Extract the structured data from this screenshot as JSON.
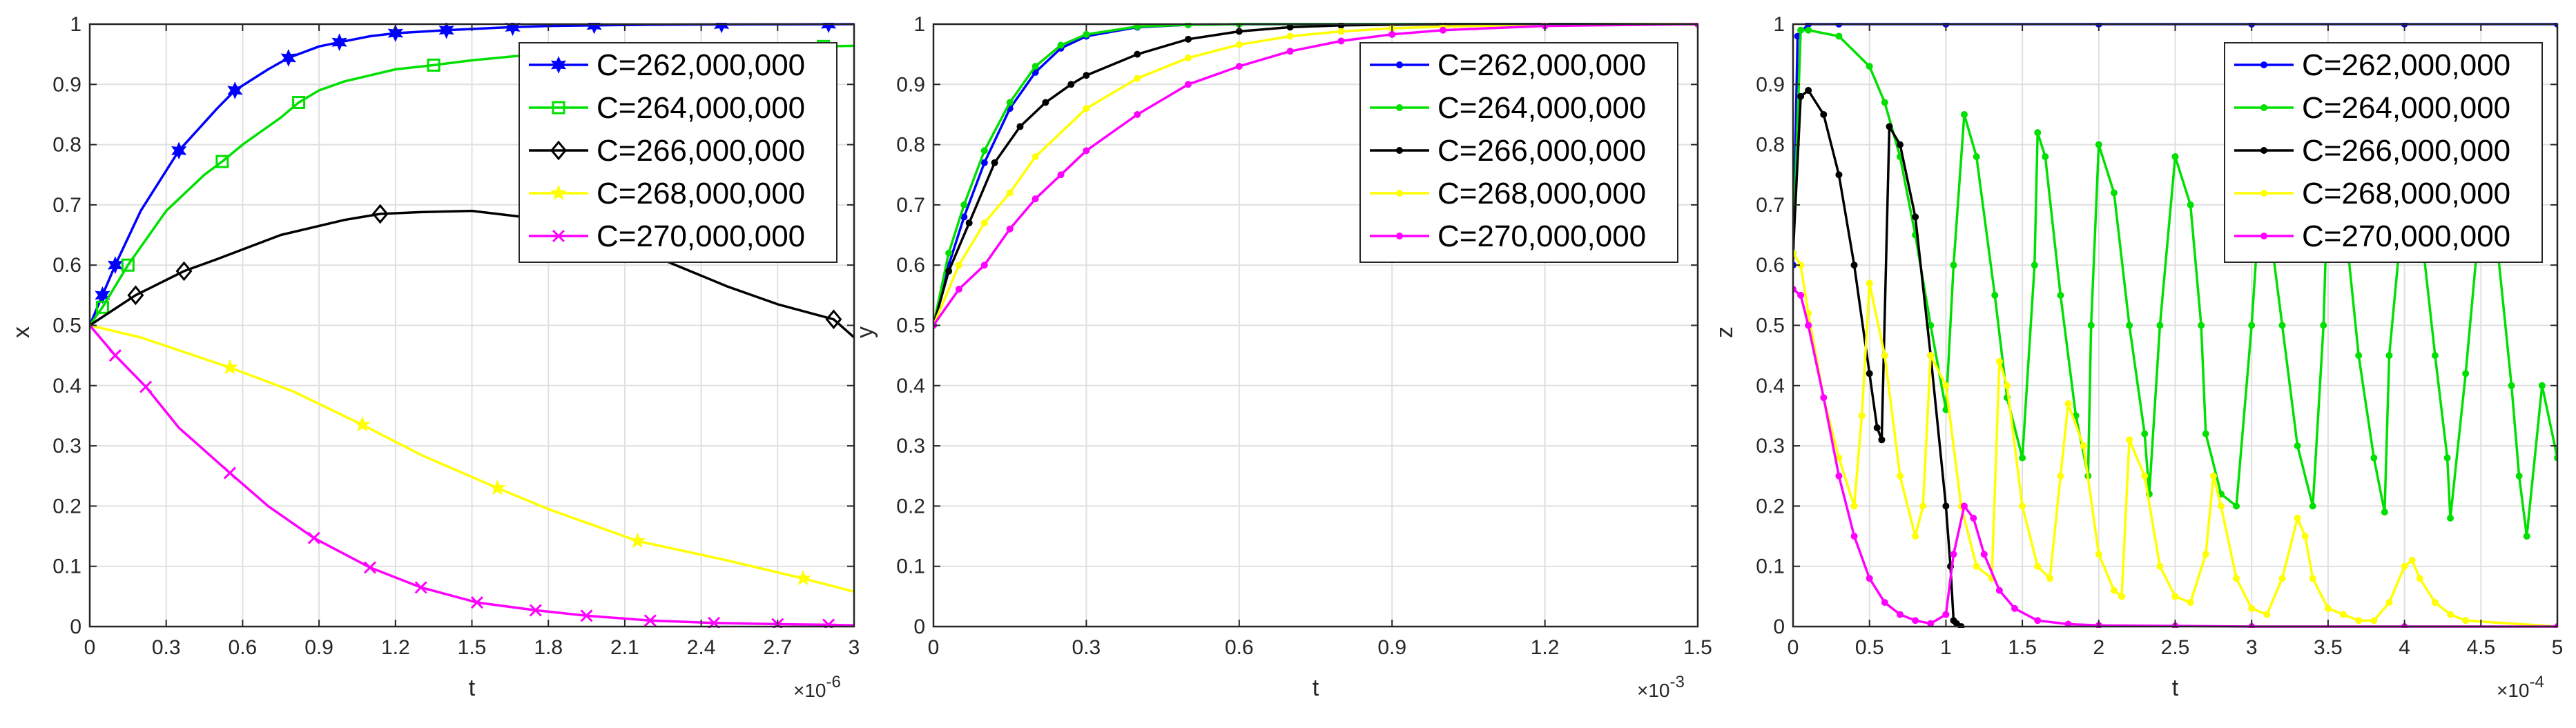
{
  "series_names": [
    "C=262,000,000",
    "C=264,000,000",
    "C=266,000,000",
    "C=268,000,000",
    "C=270,000,000"
  ],
  "colors": {
    "C262": "#0000ff",
    "C264": "#00e000",
    "C266": "#000000",
    "C268": "#ffff00",
    "C270": "#ff00ff",
    "grid": "#e0e0e0",
    "axes": "#262626"
  },
  "chart_data": [
    {
      "type": "line",
      "title": "",
      "xlabel": "t",
      "ylabel": "x",
      "x_multiplier": "×10",
      "x_exponent": "-6",
      "xlim": [
        0,
        3
      ],
      "ylim": [
        0,
        1
      ],
      "xticks": [
        0,
        0.3,
        0.6,
        0.9,
        1.2,
        1.5,
        1.8,
        2.1,
        2.4,
        2.7,
        3
      ],
      "xtick_labels": [
        "0",
        "0.3",
        "0.6",
        "0.9",
        "1.2",
        "1.5",
        "1.8",
        "2.1",
        "2.4",
        "2.7",
        "3"
      ],
      "yticks": [
        0,
        0.1,
        0.2,
        0.3,
        0.4,
        0.5,
        0.6,
        0.7,
        0.8,
        0.9,
        1
      ],
      "ytick_labels": [
        "0",
        "0.1",
        "0.2",
        "0.3",
        "0.4",
        "0.5",
        "0.6",
        "0.7",
        "0.8",
        "0.9",
        "1"
      ],
      "grid": true,
      "legend_position": "top-right",
      "series": [
        {
          "name": "C=262,000,000",
          "marker": "hexagram",
          "x": [
            0,
            0.05,
            0.1,
            0.2,
            0.35,
            0.5,
            0.57,
            0.7,
            0.78,
            0.9,
            0.98,
            1.1,
            1.2,
            1.4,
            1.6,
            1.66,
            1.8,
            1.98,
            2.2,
            2.48,
            2.7,
            2.9,
            3.0
          ],
          "y": [
            0.5,
            0.55,
            0.6,
            0.69,
            0.79,
            0.86,
            0.89,
            0.925,
            0.944,
            0.963,
            0.97,
            0.98,
            0.985,
            0.99,
            0.994,
            0.995,
            0.997,
            0.998,
            0.999,
            0.9995,
            0.9997,
            0.9999,
            1.0
          ],
          "markers_x": [
            0.05,
            0.1,
            0.35,
            0.57,
            0.78,
            0.98,
            1.2,
            1.4,
            1.66,
            1.98,
            2.48,
            2.9
          ]
        },
        {
          "name": "C=264,000,000",
          "marker": "square",
          "x": [
            0,
            0.05,
            0.15,
            0.3,
            0.45,
            0.52,
            0.6,
            0.75,
            0.82,
            0.9,
            1.0,
            1.2,
            1.35,
            1.5,
            1.7,
            2.0,
            2.3,
            2.6,
            2.88,
            3.0
          ],
          "y": [
            0.5,
            0.53,
            0.6,
            0.69,
            0.75,
            0.772,
            0.8,
            0.845,
            0.87,
            0.89,
            0.905,
            0.925,
            0.932,
            0.94,
            0.948,
            0.955,
            0.96,
            0.962,
            0.963,
            0.964
          ],
          "markers_x": [
            0.05,
            0.15,
            0.52,
            0.82,
            1.35,
            2.88
          ]
        },
        {
          "name": "C=266,000,000",
          "marker": "diamond",
          "x": [
            0,
            0.18,
            0.37,
            0.5,
            0.75,
            1.0,
            1.14,
            1.3,
            1.5,
            1.7,
            1.9,
            2.1,
            2.3,
            2.5,
            2.7,
            2.92,
            3.0
          ],
          "y": [
            0.5,
            0.55,
            0.59,
            0.61,
            0.65,
            0.675,
            0.685,
            0.688,
            0.69,
            0.68,
            0.665,
            0.635,
            0.6,
            0.565,
            0.535,
            0.51,
            0.48
          ],
          "markers_x": [
            0.18,
            0.37,
            1.14,
            2.92
          ]
        },
        {
          "name": "C=268,000,000",
          "marker": "star",
          "x": [
            0,
            0.2,
            0.55,
            0.8,
            1.07,
            1.3,
            1.6,
            1.8,
            2.15,
            2.5,
            2.8,
            3.0
          ],
          "y": [
            0.5,
            0.48,
            0.43,
            0.39,
            0.335,
            0.285,
            0.23,
            0.195,
            0.142,
            0.11,
            0.08,
            0.058
          ],
          "markers_x": [
            0.55,
            1.07,
            1.6,
            2.15,
            2.8
          ]
        },
        {
          "name": "C=270,000,000",
          "marker": "x",
          "x": [
            0,
            0.1,
            0.22,
            0.35,
            0.55,
            0.7,
            0.88,
            1.1,
            1.3,
            1.52,
            1.75,
            1.95,
            2.2,
            2.45,
            2.7,
            2.9,
            3.0
          ],
          "y": [
            0.5,
            0.45,
            0.398,
            0.33,
            0.255,
            0.2,
            0.147,
            0.098,
            0.065,
            0.04,
            0.027,
            0.018,
            0.01,
            0.006,
            0.004,
            0.003,
            0.002
          ],
          "markers_x": [
            0.1,
            0.22,
            0.55,
            0.88,
            1.1,
            1.3,
            1.52,
            1.75,
            1.95,
            2.2,
            2.45,
            2.7,
            2.9
          ]
        }
      ]
    },
    {
      "type": "line",
      "title": "",
      "xlabel": "t",
      "ylabel": "y",
      "x_multiplier": "×10",
      "x_exponent": "-3",
      "xlim": [
        0,
        1.5
      ],
      "ylim": [
        0,
        1
      ],
      "xticks": [
        0,
        0.3,
        0.6,
        0.9,
        1.2,
        1.5
      ],
      "xtick_labels": [
        "0",
        "0.3",
        "0.6",
        "0.9",
        "1.2",
        "1.5"
      ],
      "yticks": [
        0,
        0.1,
        0.2,
        0.3,
        0.4,
        0.5,
        0.6,
        0.7,
        0.8,
        0.9,
        1
      ],
      "ytick_labels": [
        "0",
        "0.1",
        "0.2",
        "0.3",
        "0.4",
        "0.5",
        "0.6",
        "0.7",
        "0.8",
        "0.9",
        "1"
      ],
      "grid": true,
      "legend_position": "top-right",
      "series": [
        {
          "name": "C=262,000,000",
          "marker": "dot",
          "x": [
            0,
            0.03,
            0.06,
            0.1,
            0.15,
            0.2,
            0.25,
            0.3,
            0.4,
            0.5,
            0.6,
            0.8,
            1.0,
            1.2,
            1.5
          ],
          "y": [
            0.5,
            0.6,
            0.68,
            0.77,
            0.86,
            0.92,
            0.96,
            0.98,
            0.995,
            0.999,
            1.0,
            1.0,
            1.0,
            1.0,
            1.0
          ]
        },
        {
          "name": "C=264,000,000",
          "marker": "dot",
          "x": [
            0,
            0.03,
            0.06,
            0.1,
            0.15,
            0.2,
            0.25,
            0.3,
            0.4,
            0.5,
            0.6,
            0.8,
            1.0,
            1.2,
            1.5
          ],
          "y": [
            0.5,
            0.62,
            0.7,
            0.79,
            0.87,
            0.93,
            0.965,
            0.983,
            0.996,
            0.999,
            1.0,
            1.0,
            1.0,
            1.0,
            1.0
          ]
        },
        {
          "name": "C=266,000,000",
          "marker": "dot",
          "x": [
            0,
            0.03,
            0.07,
            0.12,
            0.17,
            0.22,
            0.27,
            0.3,
            0.4,
            0.5,
            0.6,
            0.7,
            0.8,
            1.0,
            1.2,
            1.5
          ],
          "y": [
            0.5,
            0.59,
            0.67,
            0.77,
            0.83,
            0.87,
            0.9,
            0.915,
            0.95,
            0.975,
            0.988,
            0.995,
            0.998,
            1.0,
            1.0,
            1.0
          ]
        },
        {
          "name": "C=268,000,000",
          "marker": "dot",
          "x": [
            0,
            0.05,
            0.1,
            0.15,
            0.2,
            0.3,
            0.4,
            0.5,
            0.6,
            0.7,
            0.8,
            0.9,
            1.0,
            1.2,
            1.5
          ],
          "y": [
            0.5,
            0.6,
            0.67,
            0.72,
            0.78,
            0.86,
            0.91,
            0.944,
            0.966,
            0.98,
            0.988,
            0.993,
            0.996,
            0.999,
            1.0
          ]
        },
        {
          "name": "C=270,000,000",
          "marker": "dot",
          "x": [
            0,
            0.05,
            0.1,
            0.15,
            0.2,
            0.25,
            0.3,
            0.4,
            0.5,
            0.6,
            0.7,
            0.8,
            0.9,
            1.0,
            1.2,
            1.5
          ],
          "y": [
            0.5,
            0.56,
            0.6,
            0.66,
            0.71,
            0.75,
            0.79,
            0.85,
            0.9,
            0.93,
            0.955,
            0.972,
            0.983,
            0.99,
            0.997,
            1.0
          ]
        }
      ]
    },
    {
      "type": "line",
      "title": "",
      "xlabel": "t",
      "ylabel": "z",
      "x_multiplier": "×10",
      "x_exponent": "-4",
      "xlim": [
        0,
        5
      ],
      "ylim": [
        0,
        1
      ],
      "xticks": [
        0,
        0.5,
        1,
        1.5,
        2,
        2.5,
        3,
        3.5,
        4,
        4.5,
        5
      ],
      "xtick_labels": [
        "0",
        "0.5",
        "1",
        "1.5",
        "2",
        "2.5",
        "3",
        "3.5",
        "4",
        "4.5",
        "5"
      ],
      "yticks": [
        0,
        0.1,
        0.2,
        0.3,
        0.4,
        0.5,
        0.6,
        0.7,
        0.8,
        0.9,
        1
      ],
      "ytick_labels": [
        "0",
        "0.1",
        "0.2",
        "0.3",
        "0.4",
        "0.5",
        "0.6",
        "0.7",
        "0.8",
        "0.9",
        "1"
      ],
      "grid": true,
      "legend_position": "top-right",
      "series": [
        {
          "name": "C=262,000,000",
          "marker": "dot",
          "x": [
            0,
            0.03,
            0.1,
            0.3,
            1,
            2,
            3,
            4,
            5
          ],
          "y": [
            0.6,
            0.98,
            1.0,
            1.0,
            1.0,
            1.0,
            1.0,
            1.0,
            1.0
          ]
        },
        {
          "name": "C=264,000,000",
          "marker": "dot",
          "x": [
            0,
            0.05,
            0.1,
            0.3,
            0.5,
            0.6,
            0.7,
            0.8,
            0.9,
            1.0,
            1.05,
            1.12,
            1.2,
            1.32,
            1.4,
            1.5,
            1.58,
            1.6,
            1.65,
            1.75,
            1.85,
            1.93,
            1.95,
            2.0,
            2.1,
            2.2,
            2.3,
            2.33,
            2.4,
            2.5,
            2.6,
            2.67,
            2.7,
            2.8,
            2.9,
            3.0,
            3.07,
            3.1,
            3.2,
            3.3,
            3.4,
            3.47,
            3.5,
            3.6,
            3.7,
            3.8,
            3.87,
            3.9,
            4.0,
            4.1,
            4.2,
            4.28,
            4.3,
            4.4,
            4.5,
            4.6,
            4.7,
            4.75,
            4.8,
            4.9,
            5.0
          ],
          "y": [
            0.62,
            0.99,
            0.99,
            0.98,
            0.93,
            0.87,
            0.78,
            0.65,
            0.5,
            0.36,
            0.6,
            0.85,
            0.78,
            0.55,
            0.38,
            0.28,
            0.6,
            0.82,
            0.78,
            0.55,
            0.35,
            0.25,
            0.5,
            0.8,
            0.72,
            0.5,
            0.32,
            0.22,
            0.5,
            0.78,
            0.7,
            0.5,
            0.32,
            0.22,
            0.2,
            0.5,
            0.77,
            0.7,
            0.5,
            0.3,
            0.2,
            0.5,
            0.75,
            0.7,
            0.45,
            0.28,
            0.19,
            0.45,
            0.72,
            0.68,
            0.45,
            0.28,
            0.18,
            0.42,
            0.7,
            0.65,
            0.4,
            0.25,
            0.15,
            0.4,
            0.28
          ]
        },
        {
          "name": "C=266,000,000",
          "marker": "dot",
          "x": [
            0,
            0.05,
            0.1,
            0.2,
            0.3,
            0.4,
            0.5,
            0.55,
            0.58,
            0.63,
            0.7,
            0.8,
            0.9,
            1.0,
            1.03,
            1.05,
            1.07,
            1.1
          ],
          "y": [
            0.62,
            0.88,
            0.89,
            0.85,
            0.75,
            0.6,
            0.42,
            0.33,
            0.31,
            0.83,
            0.8,
            0.68,
            0.45,
            0.2,
            0.1,
            0.01,
            0.005,
            0.0
          ]
        },
        {
          "name": "C=268,000,000",
          "marker": "dot",
          "x": [
            0,
            0.05,
            0.1,
            0.2,
            0.3,
            0.4,
            0.45,
            0.5,
            0.6,
            0.7,
            0.8,
            0.85,
            0.9,
            1.0,
            1.1,
            1.2,
            1.3,
            1.35,
            1.4,
            1.5,
            1.6,
            1.68,
            1.75,
            1.8,
            1.9,
            2.0,
            2.1,
            2.15,
            2.2,
            2.3,
            2.4,
            2.5,
            2.6,
            2.7,
            2.75,
            2.8,
            2.9,
            3.0,
            3.1,
            3.2,
            3.3,
            3.35,
            3.4,
            3.5,
            3.6,
            3.7,
            3.8,
            3.9,
            4.0,
            4.05,
            4.1,
            4.2,
            4.3,
            4.4,
            5.0
          ],
          "y": [
            0.62,
            0.6,
            0.52,
            0.38,
            0.28,
            0.2,
            0.35,
            0.57,
            0.45,
            0.25,
            0.15,
            0.2,
            0.45,
            0.4,
            0.2,
            0.1,
            0.08,
            0.44,
            0.4,
            0.2,
            0.1,
            0.08,
            0.25,
            0.37,
            0.3,
            0.12,
            0.06,
            0.05,
            0.31,
            0.25,
            0.1,
            0.05,
            0.04,
            0.12,
            0.25,
            0.2,
            0.08,
            0.03,
            0.02,
            0.08,
            0.18,
            0.15,
            0.08,
            0.03,
            0.02,
            0.01,
            0.01,
            0.04,
            0.1,
            0.11,
            0.08,
            0.04,
            0.02,
            0.01,
            0.0
          ]
        },
        {
          "name": "C=270,000,000",
          "marker": "dot",
          "x": [
            0,
            0.05,
            0.1,
            0.2,
            0.3,
            0.4,
            0.5,
            0.6,
            0.7,
            0.8,
            0.9,
            1.0,
            1.05,
            1.12,
            1.18,
            1.25,
            1.35,
            1.45,
            1.6,
            1.8,
            2.0,
            2.5,
            3.0,
            4.0,
            5.0
          ],
          "y": [
            0.56,
            0.55,
            0.5,
            0.38,
            0.25,
            0.15,
            0.08,
            0.04,
            0.02,
            0.01,
            0.005,
            0.02,
            0.12,
            0.2,
            0.18,
            0.12,
            0.06,
            0.03,
            0.01,
            0.004,
            0.002,
            0.001,
            0.0,
            0.0,
            0.0
          ]
        }
      ]
    }
  ]
}
